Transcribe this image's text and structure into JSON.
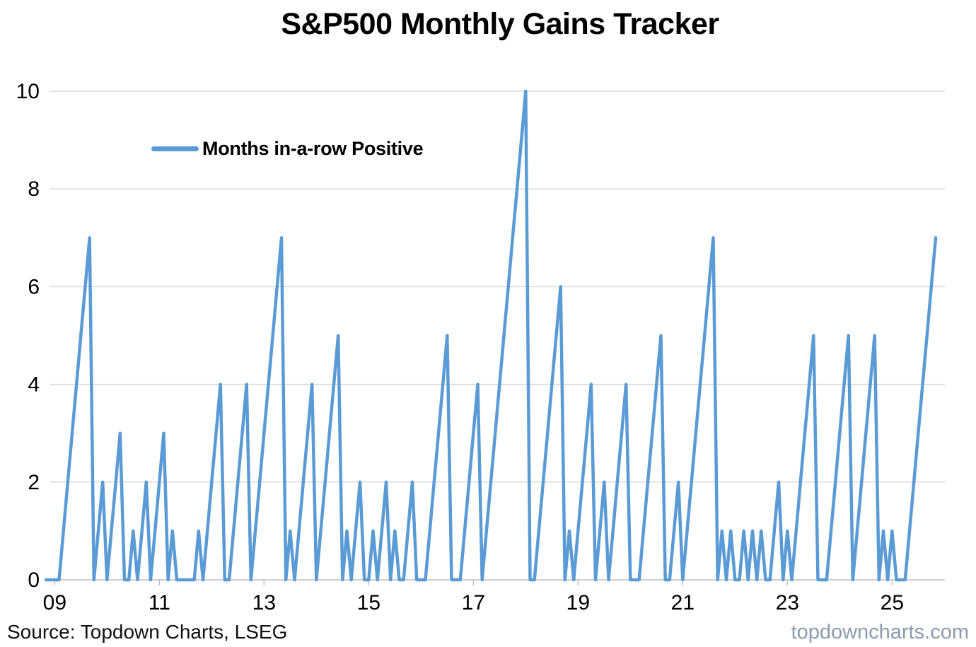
{
  "title": "S&P500 Monthly Gains Tracker",
  "legend": {
    "label": "Months in-a-row Positive"
  },
  "footer": {
    "source": "Source: Topdown Charts, LSEG",
    "watermark": "topdowncharts.com"
  },
  "colors": {
    "line": "#5B9BD5",
    "grid": "#D9D9D9",
    "axis": "#BFBFBF",
    "label": "#000000",
    "watermark": "#8C9BAE"
  },
  "chart_data": {
    "type": "line",
    "title": "S&P500 Monthly Gains Tracker",
    "series_name": "Months in-a-row Positive",
    "x_frequency": "monthly",
    "x_start": "2008-11",
    "x_end": "2025-11",
    "x_tick_labels": [
      "09",
      "11",
      "13",
      "15",
      "17",
      "19",
      "21",
      "23",
      "25"
    ],
    "x_tick_month_indices": [
      2,
      26,
      50,
      74,
      98,
      122,
      146,
      170,
      194
    ],
    "y_ticks": [
      0,
      2,
      4,
      6,
      8,
      10
    ],
    "ylim": [
      0,
      10
    ],
    "grid": "horizontal",
    "legend_position": "inside-top-left",
    "line_color": "#5B9BD5",
    "values": [
      0,
      0,
      0,
      0,
      1,
      2,
      3,
      4,
      5,
      6,
      7,
      0,
      1,
      2,
      0,
      1,
      2,
      3,
      0,
      0,
      1,
      0,
      1,
      2,
      0,
      1,
      2,
      3,
      0,
      1,
      0,
      0,
      0,
      0,
      0,
      1,
      0,
      1,
      2,
      3,
      4,
      0,
      0,
      1,
      2,
      3,
      4,
      0,
      1,
      2,
      3,
      4,
      5,
      6,
      7,
      0,
      1,
      0,
      1,
      2,
      3,
      4,
      0,
      1,
      2,
      3,
      4,
      5,
      0,
      1,
      0,
      1,
      2,
      0,
      0,
      1,
      0,
      1,
      2,
      0,
      1,
      0,
      0,
      1,
      2,
      0,
      0,
      0,
      1,
      2,
      3,
      4,
      5,
      0,
      0,
      0,
      1,
      2,
      3,
      4,
      0,
      1,
      2,
      3,
      4,
      5,
      6,
      7,
      8,
      9,
      10,
      0,
      0,
      1,
      2,
      3,
      4,
      5,
      6,
      0,
      1,
      0,
      1,
      2,
      3,
      4,
      0,
      1,
      2,
      0,
      1,
      2,
      3,
      4,
      0,
      0,
      0,
      1,
      2,
      3,
      4,
      5,
      0,
      0,
      1,
      2,
      0,
      1,
      2,
      3,
      4,
      5,
      6,
      7,
      0,
      1,
      0,
      1,
      0,
      0,
      1,
      0,
      1,
      0,
      1,
      0,
      0,
      1,
      2,
      0,
      1,
      0,
      1,
      2,
      3,
      4,
      5,
      0,
      0,
      0,
      1,
      2,
      3,
      4,
      5,
      0,
      1,
      2,
      3,
      4,
      5,
      0,
      1,
      0,
      1,
      0,
      0,
      0,
      1,
      2,
      3,
      4,
      5,
      6,
      7
    ]
  }
}
